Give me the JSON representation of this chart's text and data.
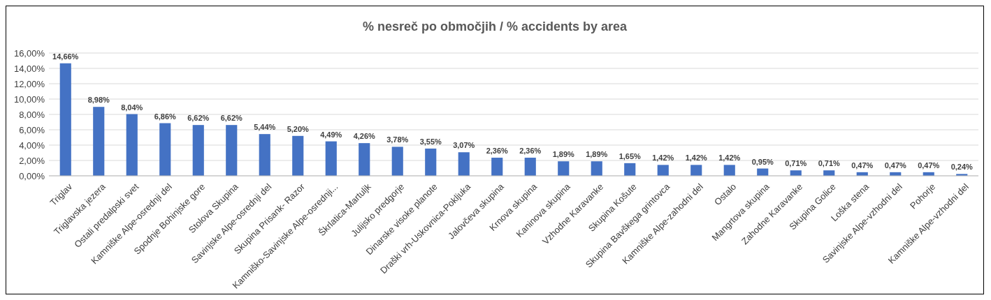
{
  "chart_data": {
    "type": "bar",
    "title": "% nesreč po območjih / % accidents by area",
    "categories": [
      "Triglav",
      "Triglavska jezera",
      "Ostali predalpski svet",
      "Kamniške Alpe-osrednji del",
      "Spodnje Bohinjske gore",
      "Stolova Skupina",
      "Savinjske Alpe-osrednji del",
      "Skupina Prisank- Razor",
      "Kamniško-Savinjske Alpe-osrednji...",
      "Škrlatica-Martuljk",
      "Julijsko predgorje",
      "Dinarske visoke planote",
      "Draški vrh-Uskovnica-Pokljuka",
      "Jalovčeva skupina",
      "Krnova skupina",
      "Kaninova skupina",
      "Vzhodne Karavanke",
      "Skupina Košute",
      "Skupina Bavškega grintovca",
      "Kamniške Alpe-zahodni del",
      "Ostalo",
      "Mangrtova skupina",
      "Zahodne Karavanke",
      "Skupina Golice",
      "Loška stena",
      "Savinjske Alpe-vzhodni del",
      "Pohorje",
      "Kamniške Alpe-vzhodni del"
    ],
    "values": [
      14.66,
      8.98,
      8.04,
      6.86,
      6.62,
      6.62,
      5.44,
      5.2,
      4.49,
      4.26,
      3.78,
      3.55,
      3.07,
      2.36,
      2.36,
      1.89,
      1.89,
      1.65,
      1.42,
      1.42,
      1.42,
      0.95,
      0.71,
      0.71,
      0.47,
      0.47,
      0.47,
      0.24
    ],
    "value_labels": [
      "14,66%",
      "8,98%",
      "8,04%",
      "6,86%",
      "6,62%",
      "6,62%",
      "5,44%",
      "5,20%",
      "4,49%",
      "4,26%",
      "3,78%",
      "3,55%",
      "3,07%",
      "2,36%",
      "2,36%",
      "1,89%",
      "1,89%",
      "1,65%",
      "1,42%",
      "1,42%",
      "1,42%",
      "0,95%",
      "0,71%",
      "0,71%",
      "0,47%",
      "0,47%",
      "0,47%",
      "0,24%"
    ],
    "color": "#4472c4",
    "ylim": [
      0,
      16
    ],
    "yticks": [
      {
        "value": 0,
        "label": "0,00%"
      },
      {
        "value": 2,
        "label": "2,00%"
      },
      {
        "value": 4,
        "label": "4,00%"
      },
      {
        "value": 6,
        "label": "6,00%"
      },
      {
        "value": 8,
        "label": "8,00%"
      },
      {
        "value": 10,
        "label": "10,00%"
      },
      {
        "value": 12,
        "label": "12,00%"
      },
      {
        "value": 14,
        "label": "14,00%"
      },
      {
        "value": 16,
        "label": "16,00%"
      }
    ],
    "grid": "y"
  }
}
